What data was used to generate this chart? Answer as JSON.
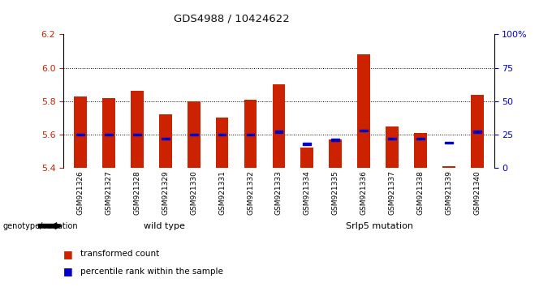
{
  "title": "GDS4988 / 10424622",
  "samples": [
    "GSM921326",
    "GSM921327",
    "GSM921328",
    "GSM921329",
    "GSM921330",
    "GSM921331",
    "GSM921332",
    "GSM921333",
    "GSM921334",
    "GSM921335",
    "GSM921336",
    "GSM921337",
    "GSM921338",
    "GSM921339",
    "GSM921340"
  ],
  "red_values": [
    5.83,
    5.82,
    5.86,
    5.72,
    5.8,
    5.7,
    5.81,
    5.9,
    5.52,
    5.57,
    6.08,
    5.65,
    5.61,
    5.41,
    5.84
  ],
  "blue_percentiles": [
    25,
    25,
    25,
    22,
    25,
    25,
    25,
    27,
    18,
    21,
    28,
    22,
    22,
    19,
    27
  ],
  "y_min": 5.4,
  "y_max": 6.2,
  "y_ticks_left": [
    5.4,
    5.6,
    5.8,
    6.0,
    6.2
  ],
  "y_ticks_right": [
    0,
    25,
    50,
    75,
    100
  ],
  "dotted_lines": [
    5.6,
    5.8,
    6.0
  ],
  "wild_type_count": 7,
  "mutation_count": 8,
  "wild_type_label": "wild type",
  "mutation_label": "Srlp5 mutation",
  "group_label": "genotype/variation",
  "legend_red": "transformed count",
  "legend_blue": "percentile rank within the sample",
  "bar_color": "#cc2200",
  "blue_color": "#0000cc",
  "wild_type_bg": "#ccffcc",
  "mutation_bg": "#44bb44",
  "tick_area_bg": "#c8c8c8",
  "bar_width": 0.45
}
